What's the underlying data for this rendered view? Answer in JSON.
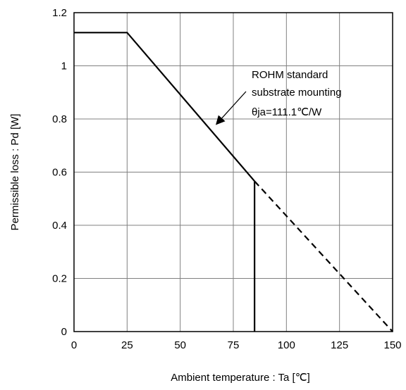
{
  "chart_data": {
    "type": "line",
    "xlabel": "Ambient temperature : Ta [℃]",
    "ylabel": "Permissible loss : Pd [W]",
    "xlim": [
      0,
      150
    ],
    "ylim": [
      0,
      1.2
    ],
    "x_ticks": [
      "0",
      "25",
      "50",
      "75",
      "100",
      "125",
      "150"
    ],
    "y_ticks": [
      "0",
      "0.2",
      "0.4",
      "0.6",
      "0.8",
      "1",
      "1.2"
    ],
    "grid": true,
    "series": [
      {
        "style": "solid",
        "x": [
          0,
          25,
          85
        ],
        "y": [
          1.125,
          1.125,
          0.566
        ]
      },
      {
        "style": "solid",
        "x": [
          85,
          85
        ],
        "y": [
          0.566,
          0
        ]
      },
      {
        "style": "dashed",
        "x": [
          85,
          150
        ],
        "y": [
          0.566,
          0
        ]
      }
    ],
    "annotation": {
      "lines": [
        "ROHM standard",
        "substrate mounting",
        "θja=111.1℃/W"
      ],
      "arrow_to": {
        "x": 67,
        "y": 0.78
      }
    }
  },
  "colors": {
    "line": "#000000",
    "grid": "#808080",
    "background": "#ffffff"
  }
}
